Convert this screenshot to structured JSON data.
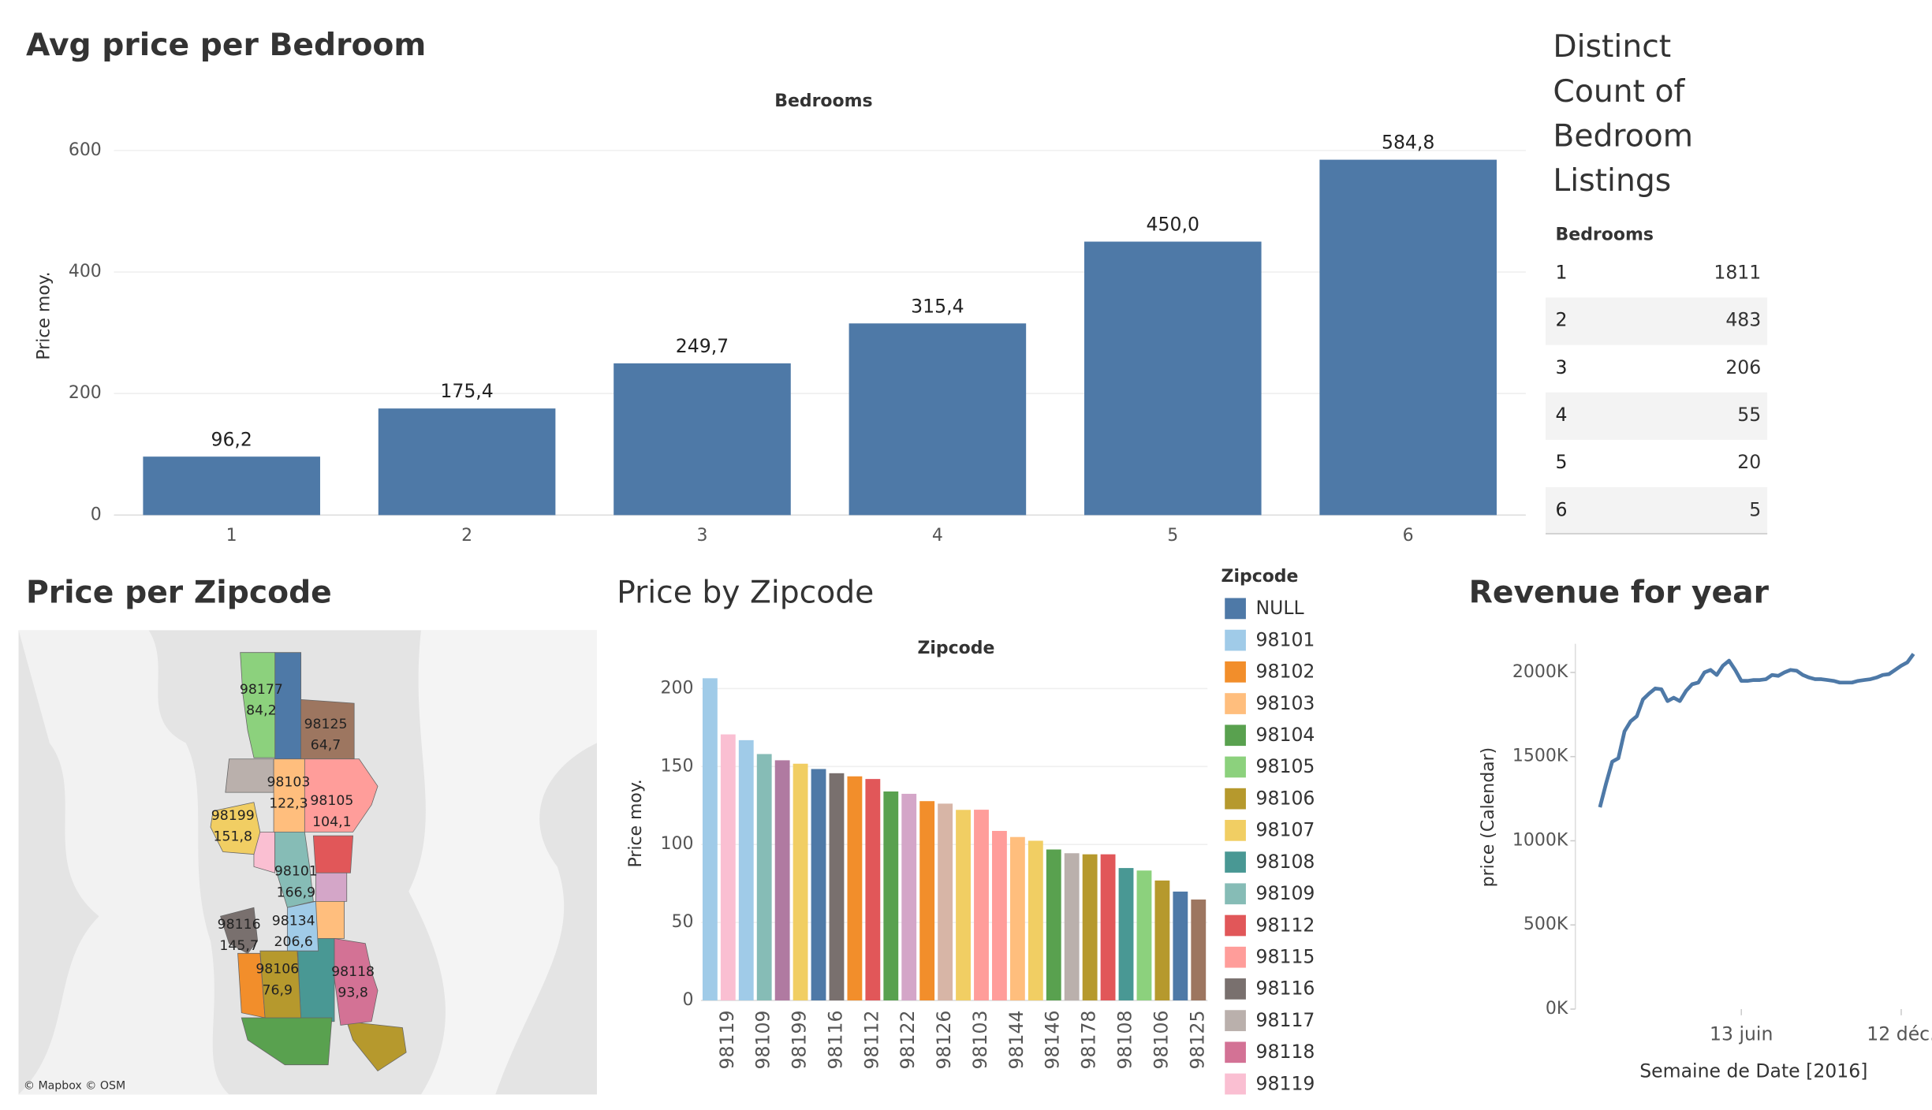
{
  "chart_data": [
    {
      "type": "bar",
      "title": "Avg price per Bedroom",
      "axis_header": "Bedrooms",
      "y_label": "Price moy.",
      "categories": [
        "1",
        "2",
        "3",
        "4",
        "5",
        "6"
      ],
      "values": [
        96.2,
        175.4,
        249.7,
        315.4,
        450.0,
        584.8
      ],
      "value_labels": [
        "96,2",
        "175,4",
        "249,7",
        "315,4",
        "450,0",
        "584,8"
      ],
      "color": "#4e79a7",
      "ylim": [
        0,
        650
      ],
      "yticks": [
        0,
        200,
        400,
        600
      ],
      "grid": true
    },
    {
      "type": "map",
      "title": "Price per Zipcode",
      "attribution": "© Mapbox © OSM",
      "regions": [
        {
          "zipcode": "98177",
          "value": 84.2,
          "value_label": "84,2",
          "color": "#8cd17d"
        },
        {
          "zipcode": "98125",
          "value": 64.7,
          "value_label": "64,7",
          "color": "#9d7660"
        },
        {
          "zipcode": "98103",
          "value": 122.3,
          "value_label": "122,3",
          "color": "#ffbe7d"
        },
        {
          "zipcode": "98105",
          "value": 104.1,
          "value_label": "104,1",
          "color": "#ff9d9a"
        },
        {
          "zipcode": "98199",
          "value": 151.8,
          "value_label": "151,8",
          "color": "#f1ce63"
        },
        {
          "zipcode": "98101",
          "value": 166.9,
          "value_label": "166,9",
          "color": "#86bcb6"
        },
        {
          "zipcode": "98116",
          "value": 145.7,
          "value_label": "145,7",
          "color": "#79706e"
        },
        {
          "zipcode": "98134",
          "value": 206.6,
          "value_label": "206,6",
          "color": "#a0cbe8"
        },
        {
          "zipcode": "98106",
          "value": 76.9,
          "value_label": "76,9",
          "color": "#b6992d"
        },
        {
          "zipcode": "98118",
          "value": 93.8,
          "value_label": "93,8",
          "color": "#d37295"
        }
      ]
    },
    {
      "type": "bar",
      "title": "Price by Zipcode",
      "axis_header": "Zipcode",
      "y_label": "Price moy.",
      "categories": [
        null,
        "98119",
        null,
        "98109",
        null,
        "98199",
        null,
        "98116",
        null,
        "98112",
        null,
        "98122",
        null,
        "98126",
        null,
        "98103",
        null,
        "98144",
        null,
        "98146",
        null,
        "98178",
        null,
        "98108",
        null,
        "98106",
        null,
        "98125"
      ],
      "values": [
        206.6,
        170.6,
        166.9,
        158,
        154,
        151.8,
        148.4,
        145.7,
        143.7,
        142,
        134,
        132.5,
        127.8,
        126.2,
        122.2,
        122.3,
        108.7,
        104.8,
        102.4,
        96.8,
        94.4,
        93.7,
        93.7,
        84.9,
        83.3,
        76.9,
        69.8,
        64.7
      ],
      "colors": [
        "#a0cbe8",
        "#fabfd2",
        "#a0cbe8",
        "#86bcb6",
        "#b07aa1",
        "#f1ce63",
        "#4e79a7",
        "#79706e",
        "#f28e2b",
        "#e15759",
        "#59a14f",
        "#d4a6c8",
        "#f28e2b",
        "#d7b5a6",
        "#f1ce63",
        "#ff9d9a",
        "#ff9d9a",
        "#ffbe7d",
        "#f1ce63",
        "#59a14f",
        "#bab0ac",
        "#b6992d",
        "#e15759",
        "#499894",
        "#8cd17d",
        "#b6992d",
        "#4e79a7",
        "#9d7660"
      ],
      "ylim": [
        0,
        212
      ],
      "yticks": [
        0,
        50,
        100,
        150,
        200
      ],
      "grid": true,
      "legend": {
        "title": "Zipcode",
        "items": [
          {
            "name": "NULL",
            "color": "#4e79a7"
          },
          {
            "name": "98101",
            "color": "#a0cbe8"
          },
          {
            "name": "98102",
            "color": "#f28e2b"
          },
          {
            "name": "98103",
            "color": "#ffbe7d"
          },
          {
            "name": "98104",
            "color": "#59a14f"
          },
          {
            "name": "98105",
            "color": "#8cd17d"
          },
          {
            "name": "98106",
            "color": "#b6992d"
          },
          {
            "name": "98107",
            "color": "#f1ce63"
          },
          {
            "name": "98108",
            "color": "#499894"
          },
          {
            "name": "98109",
            "color": "#86bcb6"
          },
          {
            "name": "98112",
            "color": "#e15759"
          },
          {
            "name": "98115",
            "color": "#ff9d9a"
          },
          {
            "name": "98116",
            "color": "#79706e"
          },
          {
            "name": "98117",
            "color": "#bab0ac"
          },
          {
            "name": "98118",
            "color": "#d37295"
          },
          {
            "name": "98119",
            "color": "#fabfd2"
          }
        ]
      }
    },
    {
      "type": "line",
      "title": "Revenue for year",
      "y_label": "price (Calendar)",
      "x_label": "Semaine de Date [2016]",
      "x": [
        "2016-01-04",
        "2016-01-11",
        "2016-01-18",
        "2016-01-25",
        "2016-02-01",
        "2016-02-08",
        "2016-02-15",
        "2016-02-22",
        "2016-02-29",
        "2016-03-07",
        "2016-03-14",
        "2016-03-21",
        "2016-03-28",
        "2016-04-04",
        "2016-04-11",
        "2016-04-18",
        "2016-04-25",
        "2016-05-02",
        "2016-05-09",
        "2016-05-16",
        "2016-05-23",
        "2016-05-30",
        "2016-06-06",
        "2016-06-13",
        "2016-06-20",
        "2016-06-27",
        "2016-07-04",
        "2016-07-11",
        "2016-07-18",
        "2016-07-25",
        "2016-08-01",
        "2016-08-08",
        "2016-08-15",
        "2016-08-22",
        "2016-08-29",
        "2016-09-05",
        "2016-09-12",
        "2016-09-19",
        "2016-09-26",
        "2016-10-03",
        "2016-10-10",
        "2016-10-17",
        "2016-10-24",
        "2016-10-31",
        "2016-11-07",
        "2016-11-14",
        "2016-11-21",
        "2016-11-28",
        "2016-12-05",
        "2016-12-12",
        "2016-12-19",
        "2016-12-26"
      ],
      "series": [
        {
          "name": "price (Calendar)",
          "color": "#4e79a7",
          "values": [
            1199000,
            1340000,
            1470000,
            1490000,
            1650000,
            1710000,
            1740000,
            1840000,
            1875000,
            1905000,
            1900000,
            1830000,
            1850000,
            1830000,
            1890000,
            1930000,
            1940000,
            2000000,
            2015000,
            1985000,
            2040000,
            2070000,
            2015000,
            1950000,
            1950000,
            1955000,
            1955000,
            1960000,
            1985000,
            1980000,
            2000000,
            2015000,
            2010000,
            1985000,
            1970000,
            1960000,
            1960000,
            1955000,
            1950000,
            1940000,
            1940000,
            1940000,
            1950000,
            1955000,
            1960000,
            1970000,
            1985000,
            1990000,
            2015000,
            2040000,
            2060000,
            2110000
          ]
        }
      ],
      "xlim": [
        "2015-12-07",
        "2017-01-09"
      ],
      "xticks": [
        {
          "value": "2016-06-13",
          "label": "13 juin"
        },
        {
          "value": "2016-12-12",
          "label": "12 déc."
        }
      ],
      "ylim": [
        0,
        2170000
      ],
      "yticks": [
        {
          "value": 0,
          "label": "0K"
        },
        {
          "value": 500000,
          "label": "500K"
        },
        {
          "value": 1000000,
          "label": "1000K"
        },
        {
          "value": 1500000,
          "label": "1500K"
        },
        {
          "value": 2000000,
          "label": "2000K"
        }
      ]
    }
  ],
  "table": {
    "title": "Distinct Count of Bedroom Listings",
    "header": "Bedrooms",
    "rows": [
      [
        "1",
        1811
      ],
      [
        "2",
        483
      ],
      [
        "3",
        206
      ],
      [
        "4",
        55
      ],
      [
        "5",
        20
      ],
      [
        "6",
        5
      ]
    ]
  }
}
